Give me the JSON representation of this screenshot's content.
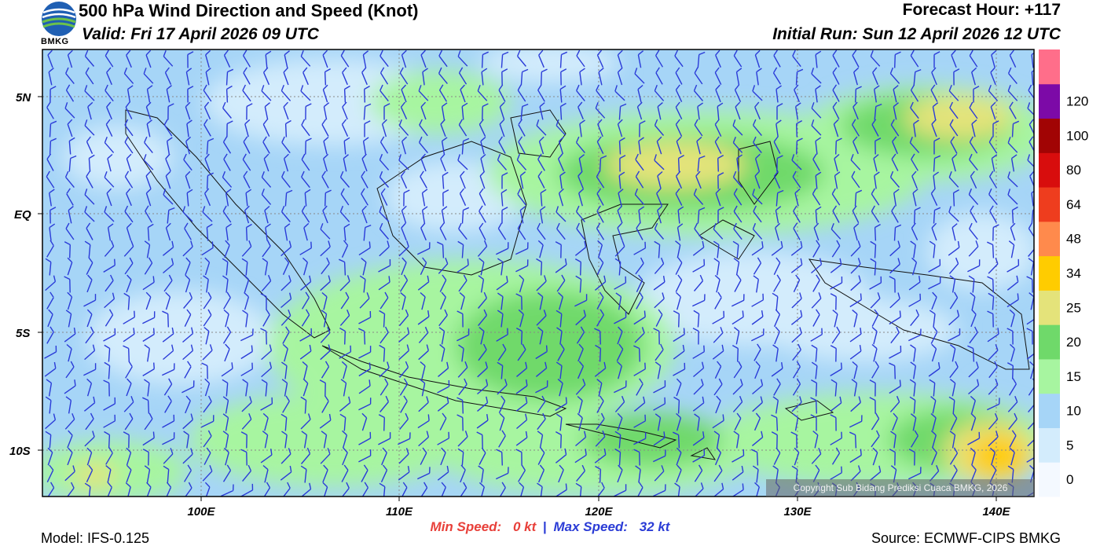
{
  "header": {
    "title": "500 hPa Wind Direction and Speed (Knot)",
    "valid": "Valid: Fri 17 April 2026 09 UTC",
    "forecast_hour": "Forecast Hour: +117",
    "initial_run": "Initial Run: Sun 12 April 2026 12 UTC",
    "logo_text": "BMKG"
  },
  "axes": {
    "lat_labels": [
      "5N",
      "EQ",
      "5S",
      "10S"
    ],
    "lon_labels": [
      "100E",
      "110E",
      "120E",
      "130E",
      "140E"
    ]
  },
  "colorbar": {
    "levels": [
      "0",
      "5",
      "10",
      "15",
      "20",
      "25",
      "34",
      "48",
      "64",
      "80",
      "100",
      "120"
    ],
    "colors": [
      "#f4f9ff",
      "#d3ecfc",
      "#a6d5f7",
      "#a7f5a0",
      "#6fd96a",
      "#e4e37a",
      "#ffcc00",
      "#ff8a4c",
      "#ee3d1e",
      "#d80d0d",
      "#a10404",
      "#7c0aa7",
      "#ff6e8a"
    ]
  },
  "footer": {
    "min_label": "Min Speed:",
    "min_value": "0 kt",
    "separator": "|",
    "max_label": "Max Speed:",
    "max_value": "32 kt",
    "model": "Model: IFS-0.125",
    "source": "Source: ECMWF-CIPS BMKG",
    "copyright": "Copyright Sub Bidang Prediksi Cuaca BMKG, 2026"
  }
}
